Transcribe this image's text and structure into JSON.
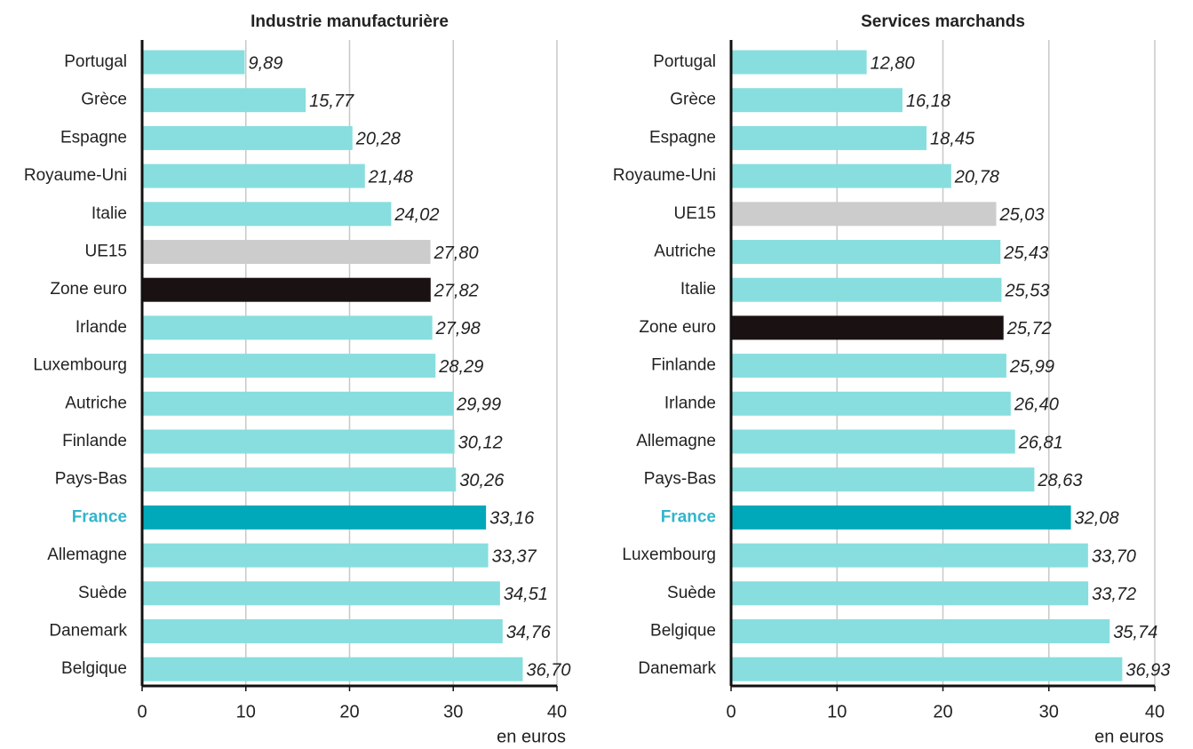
{
  "chart_data": [
    {
      "type": "barh",
      "title": "Industrie manufacturière",
      "xlabel": "en euros",
      "categories": [
        "Portugal",
        "Grèce",
        "Espagne",
        "Royaume-Uni",
        "Italie",
        "UE15",
        "Zone euro",
        "Irlande",
        "Luxembourg",
        "Autriche",
        "Finlande",
        "Pays-Bas",
        "France",
        "Allemagne",
        "Suède",
        "Danemark",
        "Belgique"
      ],
      "values": [
        9.89,
        15.77,
        20.28,
        21.48,
        24.02,
        27.8,
        27.82,
        27.98,
        28.29,
        29.99,
        30.12,
        30.26,
        33.16,
        33.37,
        34.51,
        34.76,
        36.7
      ],
      "value_labels": [
        "9,89",
        "15,77",
        "20,28",
        "21,48",
        "24,02",
        "27,80",
        "27,82",
        "27,98",
        "28,29",
        "29,99",
        "30,12",
        "30,26",
        "33,16",
        "33,37",
        "34,51",
        "34,76",
        "36,70"
      ],
      "colors": [
        "#88dede",
        "#88dede",
        "#88dede",
        "#88dede",
        "#88dede",
        "#cccccc",
        "#1a1112",
        "#88dede",
        "#88dede",
        "#88dede",
        "#88dede",
        "#88dede",
        "#00a9b9",
        "#88dede",
        "#88dede",
        "#88dede",
        "#88dede"
      ],
      "highlight_index": 12,
      "highlight_color": "#33b5cc",
      "xlim": [
        0,
        40
      ],
      "xticks": [
        0,
        10,
        20,
        30,
        40
      ],
      "grid": true
    },
    {
      "type": "barh",
      "title": "Services marchands",
      "xlabel": "en euros",
      "categories": [
        "Portugal",
        "Grèce",
        "Espagne",
        "Royaume-Uni",
        "UE15",
        "Autriche",
        "Italie",
        "Zone euro",
        "Finlande",
        "Irlande",
        "Allemagne",
        "Pays-Bas",
        "France",
        "Luxembourg",
        "Suède",
        "Belgique",
        "Danemark"
      ],
      "values": [
        12.8,
        16.18,
        18.45,
        20.78,
        25.03,
        25.43,
        25.53,
        25.72,
        25.99,
        26.4,
        26.81,
        28.63,
        32.08,
        33.7,
        33.72,
        35.74,
        36.93
      ],
      "value_labels": [
        "12,80",
        "16,18",
        "18,45",
        "20,78",
        "25,03",
        "25,43",
        "25,53",
        "25,72",
        "25,99",
        "26,40",
        "26,81",
        "28,63",
        "32,08",
        "33,70",
        "33,72",
        "35,74",
        "36,93"
      ],
      "colors": [
        "#88dede",
        "#88dede",
        "#88dede",
        "#88dede",
        "#cccccc",
        "#88dede",
        "#88dede",
        "#1a1112",
        "#88dede",
        "#88dede",
        "#88dede",
        "#88dede",
        "#00a9b9",
        "#88dede",
        "#88dede",
        "#88dede",
        "#88dede"
      ],
      "highlight_index": 12,
      "highlight_color": "#33b5cc",
      "xlim": [
        0,
        40
      ],
      "xticks": [
        0,
        10,
        20,
        30,
        40
      ],
      "grid": true
    }
  ]
}
